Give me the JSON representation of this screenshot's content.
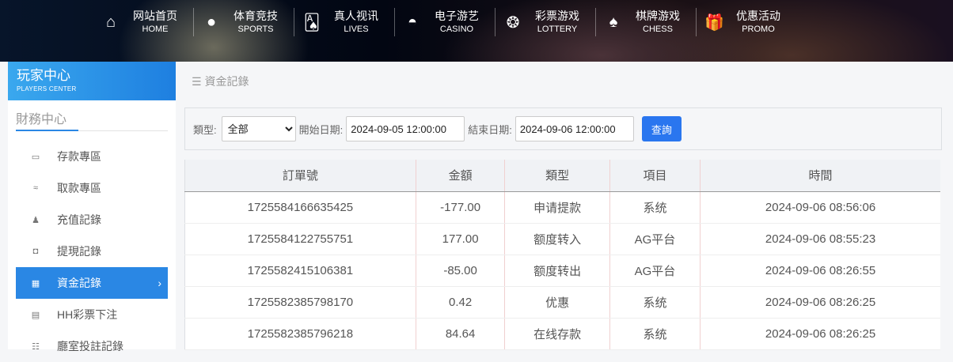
{
  "nav": [
    {
      "zh": "网站首页",
      "en": "HOME",
      "icon": "home-icon",
      "glyph": "⌂"
    },
    {
      "zh": "体育竞技",
      "en": "SPORTS",
      "icon": "ball-icon",
      "glyph": "●"
    },
    {
      "zh": "真人视讯",
      "en": "LIVES",
      "icon": "cards-icon",
      "glyph": "🂡"
    },
    {
      "zh": "电子游艺",
      "en": "CASINO",
      "icon": "roulette-icon",
      "glyph": "◓"
    },
    {
      "zh": "彩票游戏",
      "en": "LOTTERY",
      "icon": "lottery-balls-icon",
      "glyph": "❂"
    },
    {
      "zh": "棋牌游戏",
      "en": "CHESS",
      "icon": "spade-icon",
      "glyph": "♠"
    },
    {
      "zh": "优惠活动",
      "en": "PROMO",
      "icon": "gift-icon",
      "glyph": "🎁"
    }
  ],
  "sidebar": {
    "title": "玩家中心",
    "subtitle": "PLAYERS CENTER",
    "section": "財務中心",
    "items": [
      {
        "label": "存款專區",
        "icon": "card-icon",
        "glyph": "▭"
      },
      {
        "label": "取款專區",
        "icon": "hand-cash-icon",
        "glyph": "≈"
      },
      {
        "label": "充值記錄",
        "icon": "money-bag-icon",
        "glyph": "♟"
      },
      {
        "label": "提現記錄",
        "icon": "wallet-icon",
        "glyph": "◘"
      },
      {
        "label": "資金記錄",
        "icon": "money-icon",
        "glyph": "▦",
        "active": true
      },
      {
        "label": "HH彩票下注",
        "icon": "list-icon",
        "glyph": "▤"
      },
      {
        "label": "廳室投註記錄",
        "icon": "list-bullets-icon",
        "glyph": "☷"
      }
    ]
  },
  "breadcrumb": "資金記錄",
  "filter": {
    "type_label": "類型:",
    "type_value": "全部",
    "start_label": "開始日期:",
    "start_value": "2024-09-05 12:00:00",
    "end_label": "結束日期:",
    "end_value": "2024-09-06 12:00:00",
    "query": "查詢"
  },
  "table": {
    "headers": [
      "訂單號",
      "金額",
      "類型",
      "項目",
      "時間"
    ],
    "rows": [
      [
        "1725584166635425",
        "-177.00",
        "申请提款",
        "系统",
        "2024-09-06 08:56:06"
      ],
      [
        "1725584122755751",
        "177.00",
        "额度转入",
        "AG平台",
        "2024-09-06 08:55:23"
      ],
      [
        "1725582415106381",
        "-85.00",
        "额度转出",
        "AG平台",
        "2024-09-06 08:26:55"
      ],
      [
        "1725582385798170",
        "0.42",
        "优惠",
        "系统",
        "2024-09-06 08:26:25"
      ],
      [
        "1725582385796218",
        "84.64",
        "在线存款",
        "系统",
        "2024-09-06 08:26:25"
      ]
    ]
  },
  "colors": {
    "accent": "#2a87e4",
    "button": "#2a76ef"
  }
}
